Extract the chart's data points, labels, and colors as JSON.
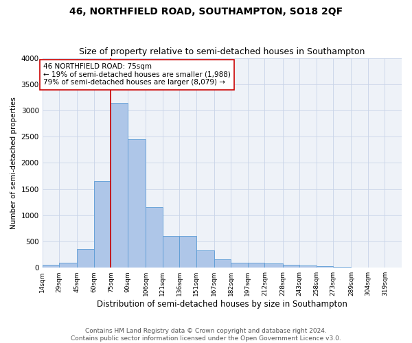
{
  "title": "46, NORTHFIELD ROAD, SOUTHAMPTON, SO18 2QF",
  "subtitle": "Size of property relative to semi-detached houses in Southampton",
  "xlabel": "Distribution of semi-detached houses by size in Southampton",
  "ylabel": "Number of semi-detached properties",
  "footer_line1": "Contains HM Land Registry data © Crown copyright and database right 2024.",
  "footer_line2": "Contains public sector information licensed under the Open Government Licence v3.0.",
  "annotation_title": "46 NORTHFIELD ROAD: 75sqm",
  "annotation_line1": "← 19% of semi-detached houses are smaller (1,988)",
  "annotation_line2": "79% of semi-detached houses are larger (8,079) →",
  "property_size": 75,
  "bar_left_edges": [
    14,
    29,
    45,
    60,
    75,
    90,
    106,
    121,
    136,
    151,
    167,
    182,
    197,
    212,
    228,
    243,
    258,
    273,
    289,
    304
  ],
  "bar_widths": [
    15,
    16,
    15,
    15,
    15,
    16,
    15,
    15,
    15,
    16,
    15,
    15,
    15,
    16,
    15,
    15,
    15,
    16,
    15,
    15
  ],
  "bar_heights": [
    50,
    100,
    350,
    1650,
    3150,
    2450,
    1150,
    600,
    600,
    325,
    160,
    100,
    100,
    75,
    55,
    40,
    25,
    15,
    8,
    5
  ],
  "tick_labels": [
    "14sqm",
    "29sqm",
    "45sqm",
    "60sqm",
    "75sqm",
    "90sqm",
    "106sqm",
    "121sqm",
    "136sqm",
    "151sqm",
    "167sqm",
    "182sqm",
    "197sqm",
    "212sqm",
    "228sqm",
    "243sqm",
    "258sqm",
    "273sqm",
    "289sqm",
    "304sqm",
    "319sqm"
  ],
  "tick_positions": [
    14,
    29,
    45,
    60,
    75,
    90,
    106,
    121,
    136,
    151,
    167,
    182,
    197,
    212,
    228,
    243,
    258,
    273,
    289,
    304,
    319
  ],
  "ylim": [
    0,
    4000
  ],
  "yticks": [
    0,
    500,
    1000,
    1500,
    2000,
    2500,
    3000,
    3500,
    4000
  ],
  "bar_color": "#aec6e8",
  "bar_edge_color": "#5b9bd5",
  "highlight_line_color": "#cc0000",
  "annotation_box_color": "#cc0000",
  "grid_color": "#c8d4e8",
  "bg_color": "#eef2f8",
  "title_fontsize": 10,
  "subtitle_fontsize": 9,
  "xlabel_fontsize": 8.5,
  "ylabel_fontsize": 7.5,
  "tick_fontsize": 6.5,
  "annotation_fontsize": 7.5,
  "footer_fontsize": 6.5
}
